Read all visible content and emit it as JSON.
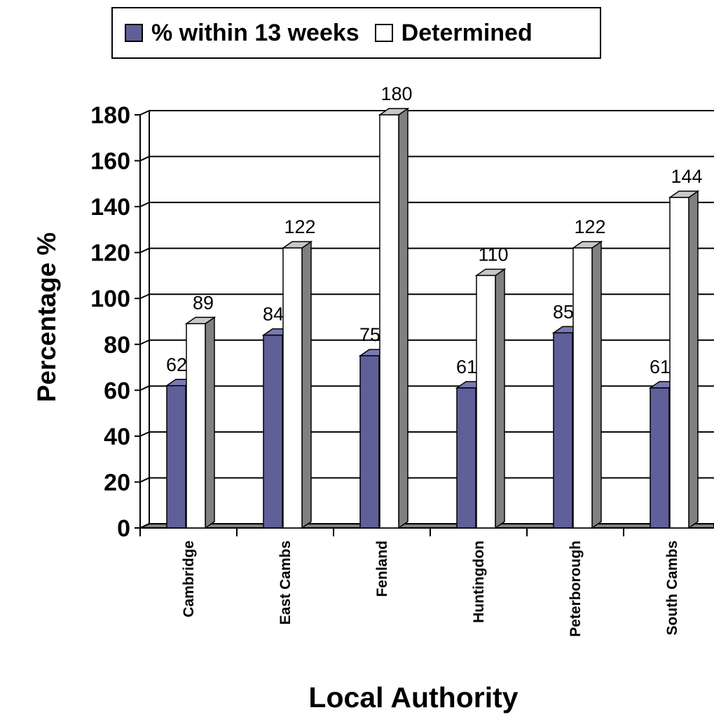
{
  "legend": {
    "items": [
      {
        "label": "% within 13 weeks",
        "color": "#5f5f99"
      },
      {
        "label": "Determined",
        "color": "#ffffff"
      }
    ]
  },
  "chart_data": {
    "type": "bar",
    "categories": [
      "Cambridge",
      "East Cambs",
      "Fenland",
      "Huntingdon",
      "Peterborough",
      "South Cambs"
    ],
    "series": [
      {
        "name": "% within 13 weeks",
        "values": [
          62,
          84,
          75,
          61,
          85,
          61
        ],
        "color": "#5f5f99"
      },
      {
        "name": "Determined",
        "values": [
          89,
          122,
          180,
          110,
          122,
          144
        ],
        "color": "#ffffff"
      }
    ],
    "xlabel": "Local Authority",
    "ylabel": "Percentage %",
    "ylim": [
      0,
      180
    ],
    "yticks": [
      0,
      20,
      40,
      60,
      80,
      100,
      120,
      140,
      160,
      180
    ],
    "grid": true,
    "legend_position": "top",
    "style": "3d"
  }
}
